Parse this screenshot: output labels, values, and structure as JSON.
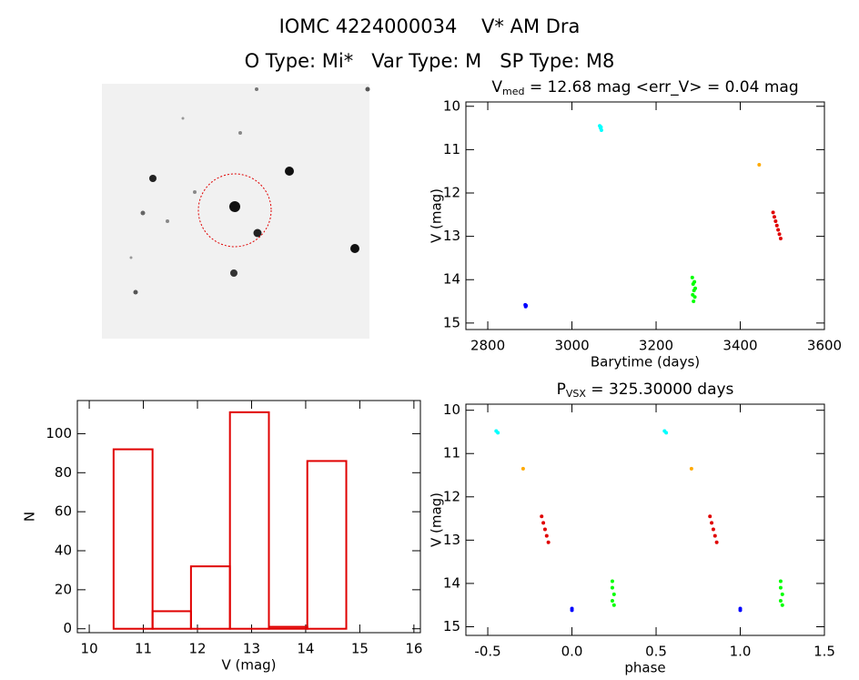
{
  "header": {
    "line1": "IOMC 4224000034    V* AM Dra",
    "line2": "O Type: Mi*   Var Type: M   SP Type: M8"
  },
  "chart_data": [
    {
      "type": "scatter",
      "title": {
        "main": "V",
        "sub": "med",
        "rest": " = 12.68 mag <err_V> = 0.04 mag"
      },
      "xlabel": "Barytime (days)",
      "ylabel": "V (mag)",
      "xlim": [
        2748,
        3600
      ],
      "xticks": [
        2800,
        3000,
        3200,
        3400,
        3600
      ],
      "ylim": [
        9.9,
        15.15
      ],
      "yticks": [
        10,
        11,
        12,
        13,
        14,
        15
      ],
      "y_inverted": true,
      "groups": [
        {
          "color": "#0000ff",
          "x": [
            2889,
            2890,
            2891
          ],
          "y": [
            14.58,
            14.62,
            14.6
          ]
        },
        {
          "color": "#00ffff",
          "x": [
            3066,
            3068,
            3070,
            3069
          ],
          "y": [
            10.45,
            10.5,
            10.55,
            10.48
          ]
        },
        {
          "color": "#00ff00",
          "x": [
            3286,
            3288,
            3290,
            3292,
            3289,
            3291,
            3287,
            3293
          ],
          "y": [
            13.95,
            14.1,
            14.25,
            14.4,
            14.5,
            14.05,
            14.35,
            14.2
          ]
        },
        {
          "color": "#ffaa00",
          "x": [
            3445
          ],
          "y": [
            11.35
          ]
        },
        {
          "color": "#e00000",
          "x": [
            3478,
            3481,
            3484,
            3487,
            3490,
            3493,
            3496
          ],
          "y": [
            12.45,
            12.55,
            12.65,
            12.75,
            12.85,
            12.95,
            13.05
          ]
        }
      ]
    },
    {
      "type": "histogram",
      "xlabel": "V (mag)",
      "ylabel": "N",
      "color": "#e00000",
      "bins": [
        10.45,
        11.17,
        11.88,
        12.6,
        13.32,
        14.03,
        14.75
      ],
      "counts": [
        92,
        9,
        32,
        111,
        1,
        86
      ],
      "xlim": [
        9.78,
        16.12
      ],
      "xticks": [
        10,
        11,
        12,
        13,
        14,
        15,
        16
      ],
      "ylim": [
        -2,
        117
      ],
      "yticks": [
        0,
        20,
        40,
        60,
        80,
        100
      ]
    },
    {
      "type": "scatter",
      "title": {
        "main": "P",
        "sub": "VSX",
        "rest": " = 325.30000 days"
      },
      "xlabel": "phase",
      "ylabel": "V (mag)",
      "xlim": [
        -0.63,
        1.5
      ],
      "xticks": [
        -0.5,
        {
          "value": 0,
          "label": "0.0"
        },
        0.5,
        {
          "value": 1,
          "label": "1.0"
        },
        1.5
      ],
      "ylim": [
        9.86,
        15.2
      ],
      "yticks": [
        10,
        11,
        12,
        13,
        14,
        15
      ],
      "y_inverted": true,
      "groups": [
        {
          "color": "#0000ff",
          "x": [
            0.0,
            0.0,
            1.0,
            1.0
          ],
          "y": [
            14.58,
            14.62,
            14.58,
            14.62
          ]
        },
        {
          "color": "#00ffff",
          "x": [
            -0.45,
            -0.44,
            0.55,
            0.56
          ],
          "y": [
            10.48,
            10.52,
            10.48,
            10.52
          ]
        },
        {
          "color": "#00ff00",
          "x": [
            0.24,
            0.24,
            0.25,
            0.24,
            0.25,
            1.24,
            1.24,
            1.25,
            1.24,
            1.25
          ],
          "y": [
            13.95,
            14.1,
            14.25,
            14.4,
            14.5,
            13.95,
            14.1,
            14.25,
            14.4,
            14.5
          ]
        },
        {
          "color": "#ffaa00",
          "x": [
            -0.29,
            0.71
          ],
          "y": [
            11.35,
            11.35
          ]
        },
        {
          "color": "#e00000",
          "x": [
            -0.18,
            -0.17,
            -0.16,
            -0.15,
            -0.14,
            0.82,
            0.83,
            0.84,
            0.85,
            0.86
          ],
          "y": [
            12.45,
            12.6,
            12.75,
            12.9,
            13.05,
            12.45,
            12.6,
            12.75,
            12.9,
            13.05
          ]
        }
      ]
    }
  ]
}
